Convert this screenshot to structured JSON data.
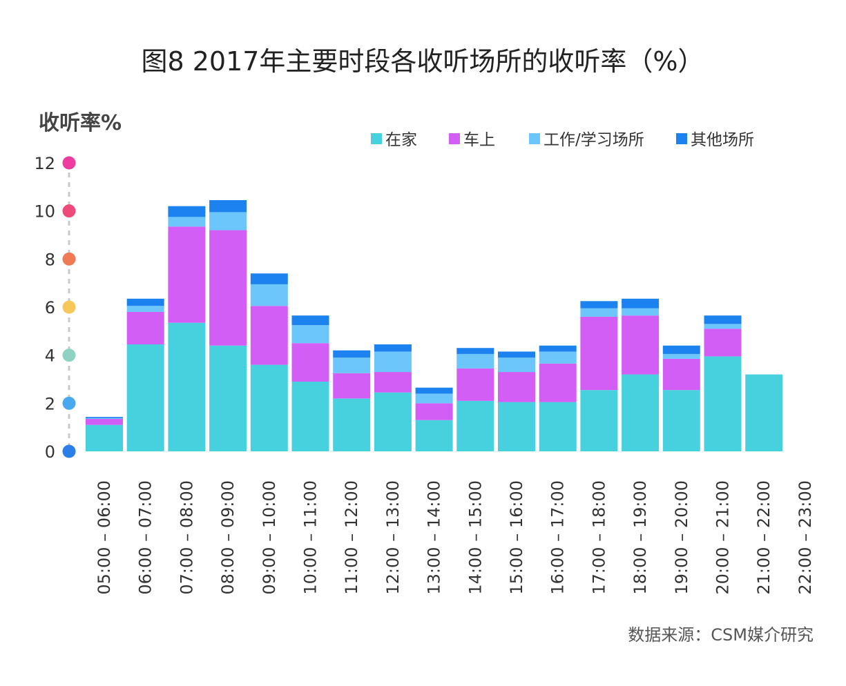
{
  "chart_data": {
    "type": "bar",
    "stacked": true,
    "title": "图8 2017年主要时段各收听场所的收听率（%）",
    "ylabel": "收听率%",
    "xlabel": "",
    "ylim": [
      0,
      12
    ],
    "yticks": [
      0,
      2,
      4,
      6,
      8,
      10,
      12
    ],
    "ytick_dot_colors": [
      "#2a80e8",
      "#4aa8f0",
      "#8ed2c4",
      "#f7c75a",
      "#f07a55",
      "#ee4a7c",
      "#ee3d9e"
    ],
    "categories": [
      "05:00 – 06:00",
      "06:00 – 07:00",
      "07:00 – 08:00",
      "08:00 – 09:00",
      "09:00 – 10:00",
      "10:00 – 11:00",
      "11:00 – 12:00",
      "12:00 – 13:00",
      "13:00 – 14:00",
      "14:00 – 15:00",
      "15:00 – 16:00",
      "16:00 – 17:00",
      "17:00 – 18:00",
      "18:00 – 19:00",
      "19:00 – 20:00",
      "20:00 – 21:00",
      "21:00 – 22:00",
      "22:00 – 23:00"
    ],
    "series": [
      {
        "name": "在家",
        "color": "#47d1de",
        "values": [
          1.1,
          4.45,
          5.35,
          4.4,
          3.6,
          2.9,
          2.2,
          2.45,
          1.3,
          2.1,
          2.05,
          2.05,
          2.55,
          3.2,
          2.55,
          3.95,
          3.2,
          0
        ]
      },
      {
        "name": "车上",
        "color": "#d25ef6",
        "values": [
          0.25,
          1.35,
          4.0,
          4.8,
          2.45,
          1.6,
          1.05,
          0.85,
          0.7,
          1.35,
          1.25,
          1.6,
          3.05,
          2.45,
          1.3,
          1.15,
          0,
          0
        ]
      },
      {
        "name": "工作/学习场所",
        "color": "#6cc6fb",
        "values": [
          0.03,
          0.25,
          0.4,
          0.75,
          0.9,
          0.75,
          0.65,
          0.85,
          0.4,
          0.6,
          0.6,
          0.5,
          0.35,
          0.3,
          0.2,
          0.2,
          0,
          0
        ]
      },
      {
        "name": "其他场所",
        "color": "#1b82ef",
        "values": [
          0.05,
          0.3,
          0.45,
          0.5,
          0.45,
          0.4,
          0.3,
          0.3,
          0.25,
          0.25,
          0.25,
          0.25,
          0.3,
          0.4,
          0.35,
          0.35,
          0,
          0
        ]
      }
    ],
    "legend_position": "top-right",
    "grid": false
  },
  "source": "数据来源：CSM媒介研究"
}
